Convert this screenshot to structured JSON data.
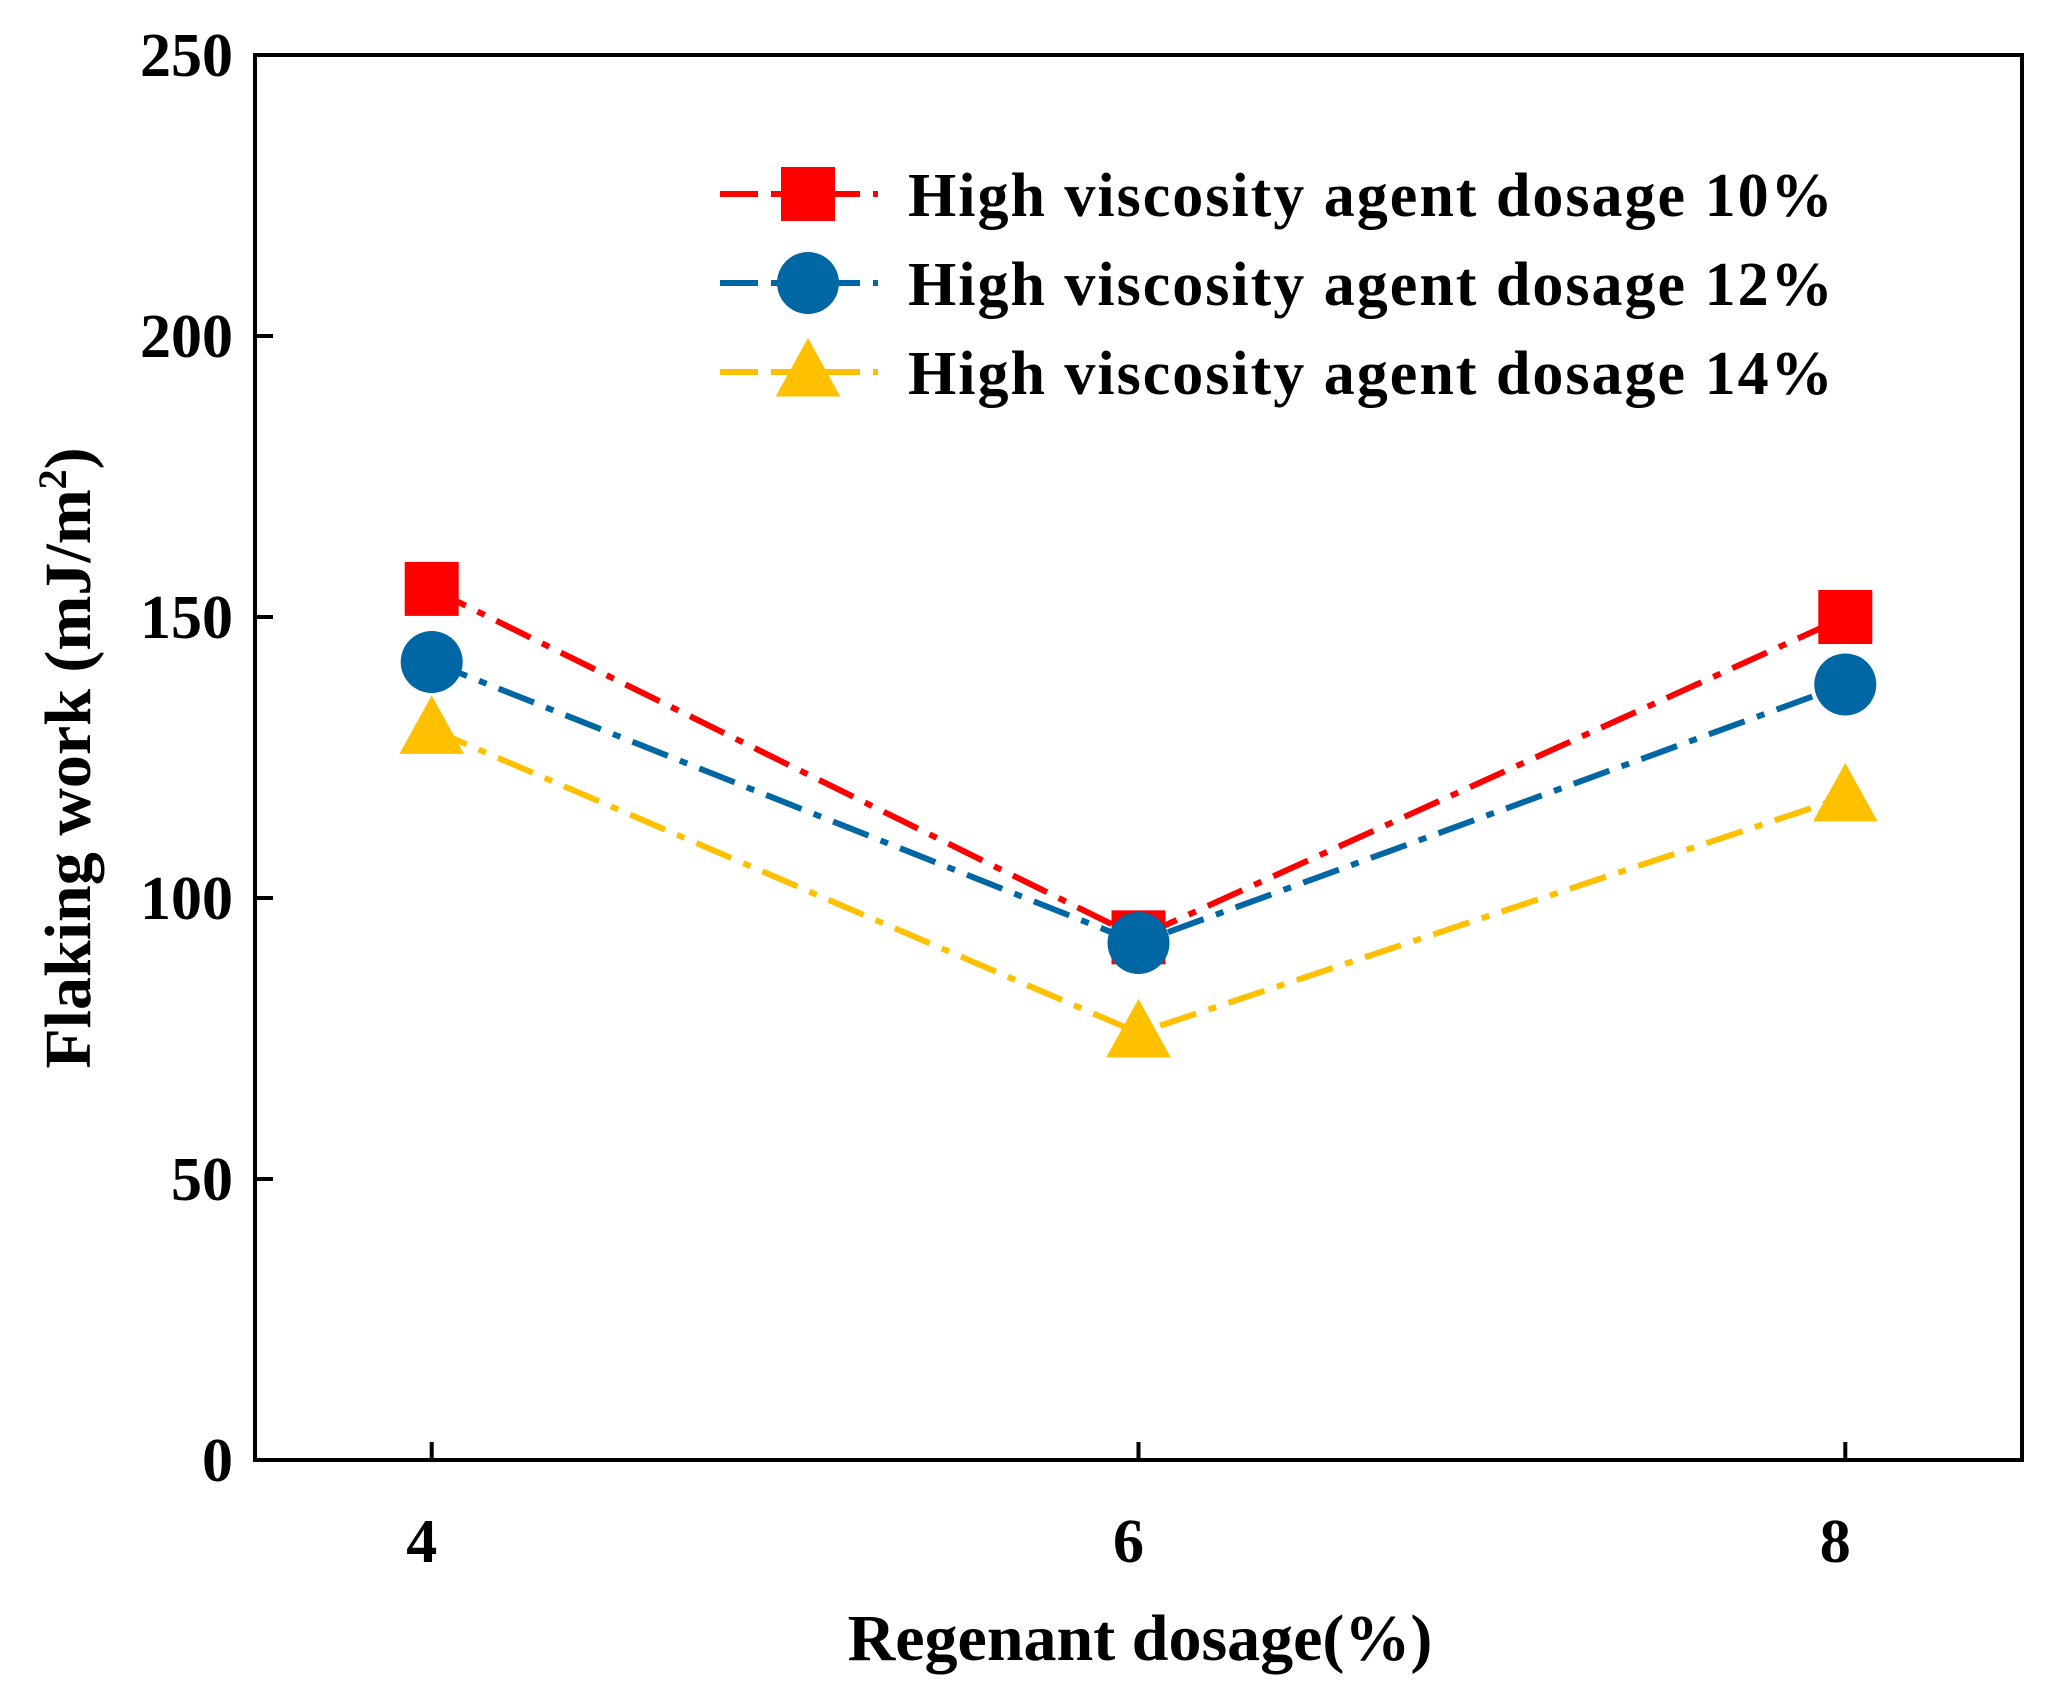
{
  "chart_data": {
    "type": "line",
    "title": "",
    "xlabel": "Regenant dosage(%)",
    "ylabel_main": "Flaking work (mJ/m",
    "ylabel_sup": "2",
    "ylabel_close": ")",
    "categories": [
      4,
      6,
      8
    ],
    "x_tick_labels": [
      "4",
      "6",
      "8"
    ],
    "xlim": [
      3.5,
      8.5
    ],
    "ylim": [
      0,
      250
    ],
    "y_ticks": [
      0,
      50,
      100,
      150,
      200,
      250
    ],
    "y_tick_labels": [
      "0",
      "50",
      "100",
      "150",
      "200",
      "250"
    ],
    "grid": false,
    "legend_position": "top-right",
    "series": [
      {
        "name": "High viscosity agent dosage 10%",
        "color": "#ff0000",
        "marker": "square",
        "values": [
          155,
          93,
          150
        ]
      },
      {
        "name": "High viscosity agent dosage 12%",
        "color": "#0066a4",
        "marker": "circle",
        "values": [
          142,
          92,
          138
        ]
      },
      {
        "name": "High viscosity agent dosage 14%",
        "color": "#ffc000",
        "marker": "triangle",
        "values": [
          130,
          76,
          118
        ]
      }
    ]
  }
}
